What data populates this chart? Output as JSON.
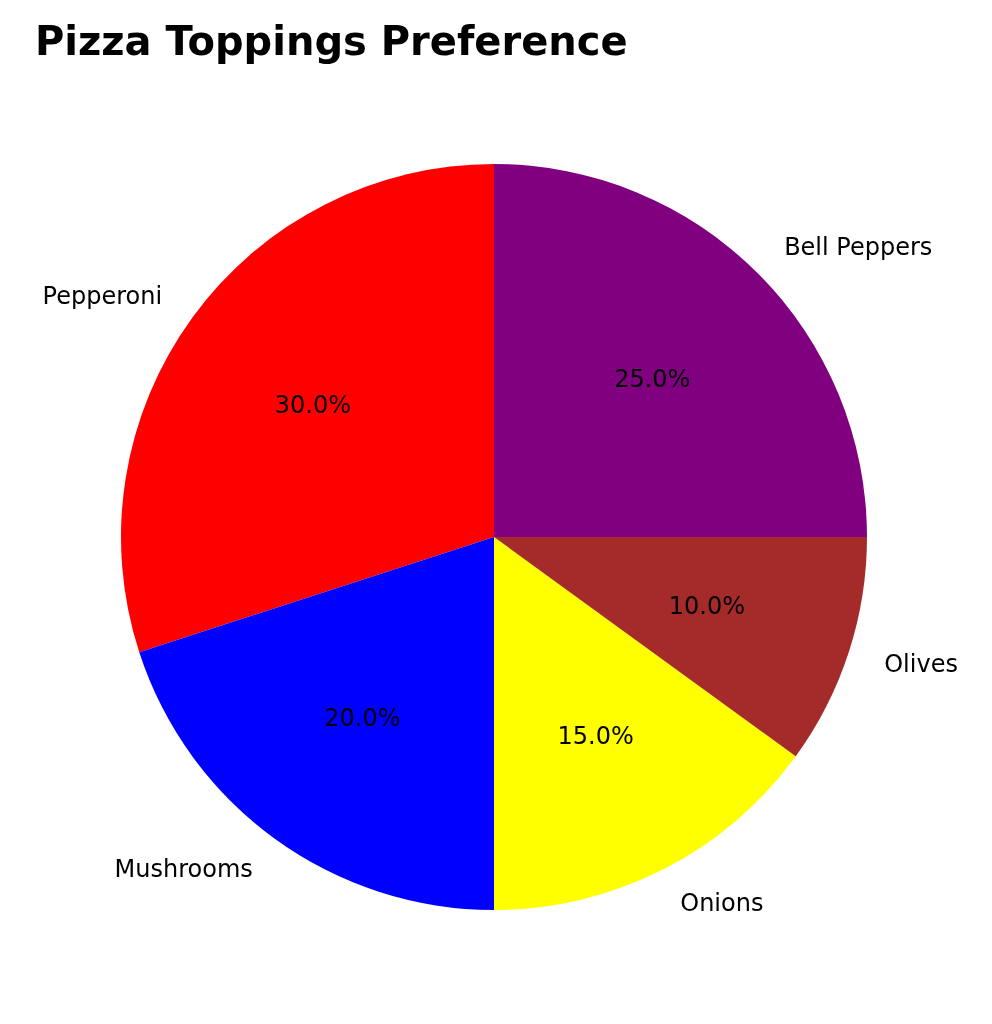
{
  "chart_data": {
    "type": "pie",
    "title": "Pizza Toppings Preference",
    "categories": [
      "Pepperoni",
      "Mushrooms",
      "Onions",
      "Olives",
      "Bell Peppers"
    ],
    "values": [
      30,
      20,
      15,
      10,
      25
    ],
    "value_labels": [
      "30.0%",
      "20.0%",
      "15.0%",
      "10.0%",
      "25.0%"
    ],
    "colors": [
      "#ff0000",
      "#0000ff",
      "#ffff00",
      "#a52a2a",
      "#800080"
    ],
    "legend": false
  }
}
